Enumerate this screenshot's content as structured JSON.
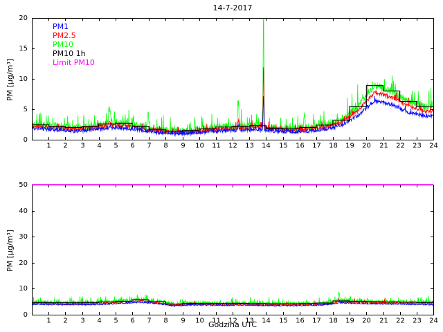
{
  "figure": {
    "background": "#ffffff",
    "date_title": "14-7-2017"
  },
  "colors": {
    "pm1": "#0000ff",
    "pm2_5": "#ff0000",
    "pm10": "#00ff00",
    "pm10_1h": "#000000",
    "limit": "#ff00ff",
    "axis": "#000000"
  },
  "chart_data": [
    {
      "type": "line",
      "title": "14-7-2017",
      "xlabel": "",
      "ylabel": "PM [µg/m³]",
      "xlim": [
        0,
        24
      ],
      "ylim": [
        0,
        20
      ],
      "xticks": [
        1,
        2,
        3,
        4,
        5,
        6,
        7,
        8,
        9,
        10,
        11,
        12,
        13,
        14,
        15,
        16,
        17,
        18,
        19,
        20,
        21,
        22,
        23,
        24
      ],
      "yticks": [
        0,
        5,
        10,
        15,
        20
      ],
      "grid": false,
      "legend_position": "top-left-inside",
      "legend_entries": [
        {
          "label": "PM1",
          "color": "#0000ff"
        },
        {
          "label": "PM2.5",
          "color": "#ff0000"
        },
        {
          "label": "PM10",
          "color": "#00ff00"
        },
        {
          "label": "PM10 1h",
          "color": "#000000"
        },
        {
          "label": "Limit PM10",
          "color": "#ff00ff"
        }
      ],
      "show_legend": true,
      "limit_value": null,
      "series": {
        "hour_centers": [
          0.5,
          1.5,
          2.5,
          3.5,
          4.5,
          5.5,
          6.5,
          7.5,
          8.5,
          9.5,
          10.5,
          11.5,
          12.5,
          13.5,
          14.5,
          15.5,
          16.5,
          17.5,
          18.5,
          19.5,
          20.5,
          21.5,
          22.5,
          23.5
        ],
        "pm10": [
          2.5,
          2.2,
          2.0,
          2.2,
          2.6,
          2.7,
          2.2,
          1.7,
          1.4,
          1.5,
          1.8,
          2.1,
          2.2,
          2.3,
          1.9,
          1.8,
          2.0,
          2.4,
          3.2,
          5.5,
          8.9,
          8.0,
          6.3,
          5.4
        ],
        "pm2_5": [
          2.2,
          1.9,
          1.8,
          1.9,
          2.3,
          2.4,
          1.9,
          1.5,
          1.2,
          1.3,
          1.6,
          1.8,
          1.9,
          2.0,
          1.7,
          1.6,
          1.8,
          2.1,
          2.8,
          4.8,
          7.8,
          7.0,
          5.5,
          4.7
        ],
        "pm1": [
          1.8,
          1.6,
          1.4,
          1.6,
          1.9,
          1.9,
          1.6,
          1.2,
          1.0,
          1.1,
          1.3,
          1.5,
          1.6,
          1.7,
          1.4,
          1.3,
          1.4,
          1.7,
          2.3,
          4.0,
          6.4,
          5.8,
          4.5,
          3.9
        ],
        "pm10_1h": [
          2.5,
          2.2,
          2.0,
          2.2,
          2.6,
          2.7,
          2.2,
          1.7,
          1.4,
          1.5,
          1.8,
          2.1,
          2.2,
          2.3,
          1.9,
          1.8,
          2.0,
          2.4,
          3.2,
          5.5,
          8.9,
          8.0,
          6.3,
          5.4
        ]
      },
      "events": [
        {
          "x": 4.65,
          "sigma": 0.05,
          "pm10": 2.5,
          "pm2_5": 0.8,
          "pm1": 0.4
        },
        {
          "x": 6.95,
          "sigma": 0.04,
          "pm10": 2.8
        },
        {
          "x": 12.35,
          "sigma": 0.03,
          "pm10": 4.0,
          "pm2_5": 1.5,
          "pm1": 0.8
        },
        {
          "x": 13.85,
          "sigma": 0.022,
          "pm10": 19.0,
          "pm2_5": 11.0,
          "pm1": 6.0
        },
        {
          "x": 16.3,
          "sigma": 0.03,
          "pm10": 2.2
        }
      ],
      "noise": {
        "pm10": {
          "amp": 0.55,
          "spike_p": 0.1,
          "spike_amp": 2.0,
          "seed": 11
        },
        "pm2_5": {
          "amp": 0.32,
          "spike_p": 0.05,
          "spike_amp": 0.9,
          "seed": 22
        },
        "pm1": {
          "amp": 0.28,
          "spike_p": 0.03,
          "spike_amp": 0.5,
          "seed": 33
        }
      }
    },
    {
      "type": "line",
      "title": "",
      "xlabel": "Godzina UTC",
      "ylabel": "PM [µg/m³]",
      "xlim": [
        0,
        24
      ],
      "ylim": [
        0,
        50
      ],
      "xticks": [
        1,
        2,
        3,
        4,
        5,
        6,
        7,
        8,
        9,
        10,
        11,
        12,
        13,
        14,
        15,
        16,
        17,
        18,
        19,
        20,
        21,
        22,
        23,
        24
      ],
      "yticks": [
        0,
        10,
        20,
        30,
        40,
        50
      ],
      "grid": false,
      "show_legend": false,
      "limit_value": 50,
      "series": {
        "hour_centers": [
          0.5,
          1.5,
          2.5,
          3.5,
          4.5,
          5.5,
          6.5,
          7.5,
          8.5,
          9.5,
          10.5,
          11.5,
          12.5,
          13.5,
          14.5,
          15.5,
          16.5,
          17.5,
          18.5,
          19.5,
          20.5,
          21.5,
          22.5,
          23.5
        ],
        "pm10": [
          4.9,
          4.7,
          4.7,
          4.8,
          5.0,
          5.4,
          5.9,
          5.2,
          4.2,
          4.6,
          4.5,
          4.4,
          4.5,
          4.4,
          4.3,
          4.3,
          4.4,
          4.6,
          5.6,
          5.3,
          5.1,
          5.0,
          4.9,
          4.8
        ],
        "pm2_5": [
          4.4,
          4.2,
          4.2,
          4.3,
          4.5,
          4.9,
          5.3,
          4.7,
          3.8,
          4.1,
          4.1,
          4.0,
          4.1,
          4.0,
          3.9,
          3.9,
          4.0,
          4.1,
          5.0,
          4.8,
          4.6,
          4.5,
          4.4,
          4.3
        ],
        "pm1": [
          4.0,
          3.9,
          3.9,
          3.9,
          4.1,
          4.4,
          4.8,
          4.3,
          3.4,
          3.8,
          3.7,
          3.6,
          3.7,
          3.6,
          3.5,
          3.5,
          3.6,
          3.8,
          4.6,
          4.3,
          4.2,
          4.1,
          4.0,
          3.9
        ],
        "pm10_1h": [
          4.7,
          4.6,
          4.6,
          4.7,
          4.9,
          5.2,
          5.7,
          5.0,
          4.1,
          4.4,
          4.4,
          4.3,
          4.4,
          4.3,
          4.2,
          4.2,
          4.3,
          4.5,
          5.3,
          5.1,
          5.0,
          4.9,
          4.8,
          4.7
        ]
      },
      "events": [
        {
          "x": 18.35,
          "sigma": 0.03,
          "pm10": 3.2,
          "pm2_5": 1.2,
          "pm1": 0.8
        }
      ],
      "noise": {
        "pm10": {
          "amp": 0.6,
          "spike_p": 0.08,
          "spike_amp": 1.3,
          "seed": 44
        },
        "pm2_5": {
          "amp": 0.3,
          "spike_p": 0.03,
          "spike_amp": 0.6,
          "seed": 55
        },
        "pm1": {
          "amp": 0.25,
          "spike_p": 0.02,
          "spike_amp": 0.4,
          "seed": 66
        }
      }
    }
  ]
}
